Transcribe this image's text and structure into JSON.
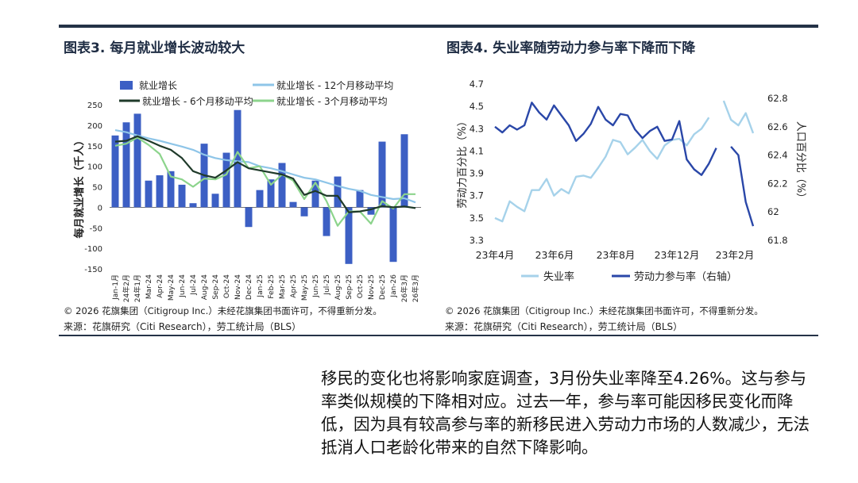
{
  "left": {
    "title": "图表3. 每月就业增长波动较大",
    "copyright": "© 2026 花旗集团（Citigroup Inc.）未经花旗集团书面许可，不得重新分发。",
    "source": "来源：花旗研究（Citi Research），劳工统计局（BLS）"
  },
  "right": {
    "title": "图表4. 失业率随劳动力参与率下降而下降",
    "copyright": "© 2026 花旗集团（Citigroup Inc.）未经花旗集团书面许可，不得重新分发。",
    "source": "来源：花旗研究（Citi Research），劳工统计局（BLS）"
  },
  "paragraph": "移民的变化也将影响家庭调查，3月份失业率降至4.26%。这与参与率类似规模的下降相对应。过去一年，参与率可能因移民变化而降低，因为具有较高参与率的新移民进入劳动力市场的人数减少，无法抵消人口老龄化带来的自然下降影响。",
  "colors": {
    "bar": "#3c5fc4",
    "ma12": "#8ec5e8",
    "ma6": "#1f3a2a",
    "ma3": "#8cd48c",
    "unemp": "#a6d2ea",
    "lfpr": "#2a47a8",
    "title": "#1f2d44"
  },
  "chart_data": [
    {
      "type": "bar",
      "title": "图表3. 每月就业增长波动较大",
      "ylabel": "每月就业增长（千人）",
      "ylim": [
        -150,
        250
      ],
      "yticks": [
        -150,
        -100,
        -50,
        0,
        50,
        100,
        150,
        200,
        250
      ],
      "legend": [
        "就业增长",
        "就业增长 - 12个月移动平均",
        "就业增长 - 6个月移动平均",
        "就业增长 - 3个月移动平均"
      ],
      "categories": [
        "Jan-1月",
        "24年2月",
        "24年1月",
        "Mar-24",
        "Apr-24",
        "May-24",
        "Jun-24",
        "Jul-24",
        "Aug-24",
        "Sep-24",
        "Oct-24",
        "Nov-24",
        "Dec-24",
        "Jan-25",
        "Feb-25",
        "Mar-25",
        "Apr-25",
        "May-25",
        "Jun-25",
        "Jul-25",
        "Aug-25",
        "Sep-25",
        "Oct-25",
        "Nov-25",
        "Dec-25",
        "Jan-26",
        "26年3月",
        "26年3月"
      ],
      "series": [
        {
          "name": "就业增长",
          "kind": "bar",
          "values": [
            175,
            207,
            228,
            65,
            78,
            88,
            55,
            10,
            155,
            33,
            133,
            237,
            -48,
            42,
            68,
            108,
            13,
            -22,
            65,
            -70,
            75,
            -138,
            42,
            -18,
            160,
            -133,
            178,
            0
          ]
        },
        {
          "name": "就业增长 - 12个月移动平均",
          "kind": "line",
          "values": [
            188,
            183,
            175,
            168,
            162,
            155,
            148,
            140,
            128,
            120,
            115,
            112,
            110,
            100,
            95,
            88,
            80,
            72,
            68,
            60,
            52,
            45,
            40,
            30,
            25,
            20,
            22,
            12
          ]
        },
        {
          "name": "就业增长 - 6个月移动平均",
          "kind": "line",
          "values": [
            160,
            162,
            173,
            162,
            150,
            140,
            120,
            88,
            78,
            72,
            90,
            110,
            95,
            90,
            85,
            80,
            70,
            30,
            40,
            28,
            28,
            -12,
            -10,
            -5,
            3,
            0,
            2,
            -2
          ]
        },
        {
          "name": "就业增长 - 3个月移动平均",
          "kind": "line",
          "values": [
            150,
            155,
            170,
            152,
            130,
            75,
            68,
            50,
            70,
            68,
            80,
            135,
            95,
            100,
            55,
            80,
            65,
            20,
            60,
            15,
            -45,
            -10,
            -10,
            -40,
            15,
            -3,
            32,
            32
          ]
        }
      ]
    },
    {
      "type": "line",
      "title": "图表4. 失业率随劳动力参与率下降而下降",
      "ylabel_left": "劳动力百分比（%）",
      "ylabel_right": "人口百分比（%）",
      "ylim_left": [
        3.3,
        4.7
      ],
      "yticks_left": [
        3.3,
        3.5,
        3.7,
        3.9,
        4.1,
        4.3,
        4.5,
        4.7
      ],
      "ylim_right": [
        61.8,
        62.8
      ],
      "yticks_right": [
        61.8,
        62,
        62.2,
        62.4,
        62.6,
        62.8
      ],
      "xtick_labels": [
        "23年4月",
        "23年6月",
        "23年8月",
        "23年12月",
        "23年2月"
      ],
      "legend": [
        "失业率",
        "劳动力参与率（右轴）"
      ],
      "series": [
        {
          "name": "失业率",
          "axis": "left",
          "values": [
            3.5,
            3.47,
            3.65,
            3.6,
            3.56,
            3.75,
            3.75,
            3.85,
            3.7,
            3.76,
            3.72,
            3.87,
            3.88,
            3.86,
            3.95,
            4.05,
            4.2,
            4.18,
            4.07,
            4.13,
            4.2,
            4.1,
            4.03,
            4.15,
            4.2,
            4.21,
            4.15,
            4.25,
            4.3,
            4.4,
            null,
            4.55,
            4.38,
            4.33,
            4.44,
            4.26
          ]
        },
        {
          "name": "劳动力参与率（右轴）",
          "axis": "right",
          "values": [
            62.6,
            62.56,
            62.61,
            62.58,
            62.61,
            62.77,
            62.7,
            62.65,
            62.75,
            62.68,
            62.61,
            62.5,
            62.55,
            62.62,
            62.74,
            62.65,
            62.61,
            62.69,
            62.68,
            62.58,
            62.52,
            62.57,
            62.6,
            62.5,
            62.51,
            62.64,
            62.37,
            62.3,
            62.26,
            62.34,
            62.45,
            null,
            62.46,
            62.4,
            62.07,
            61.9
          ]
        }
      ]
    }
  ]
}
